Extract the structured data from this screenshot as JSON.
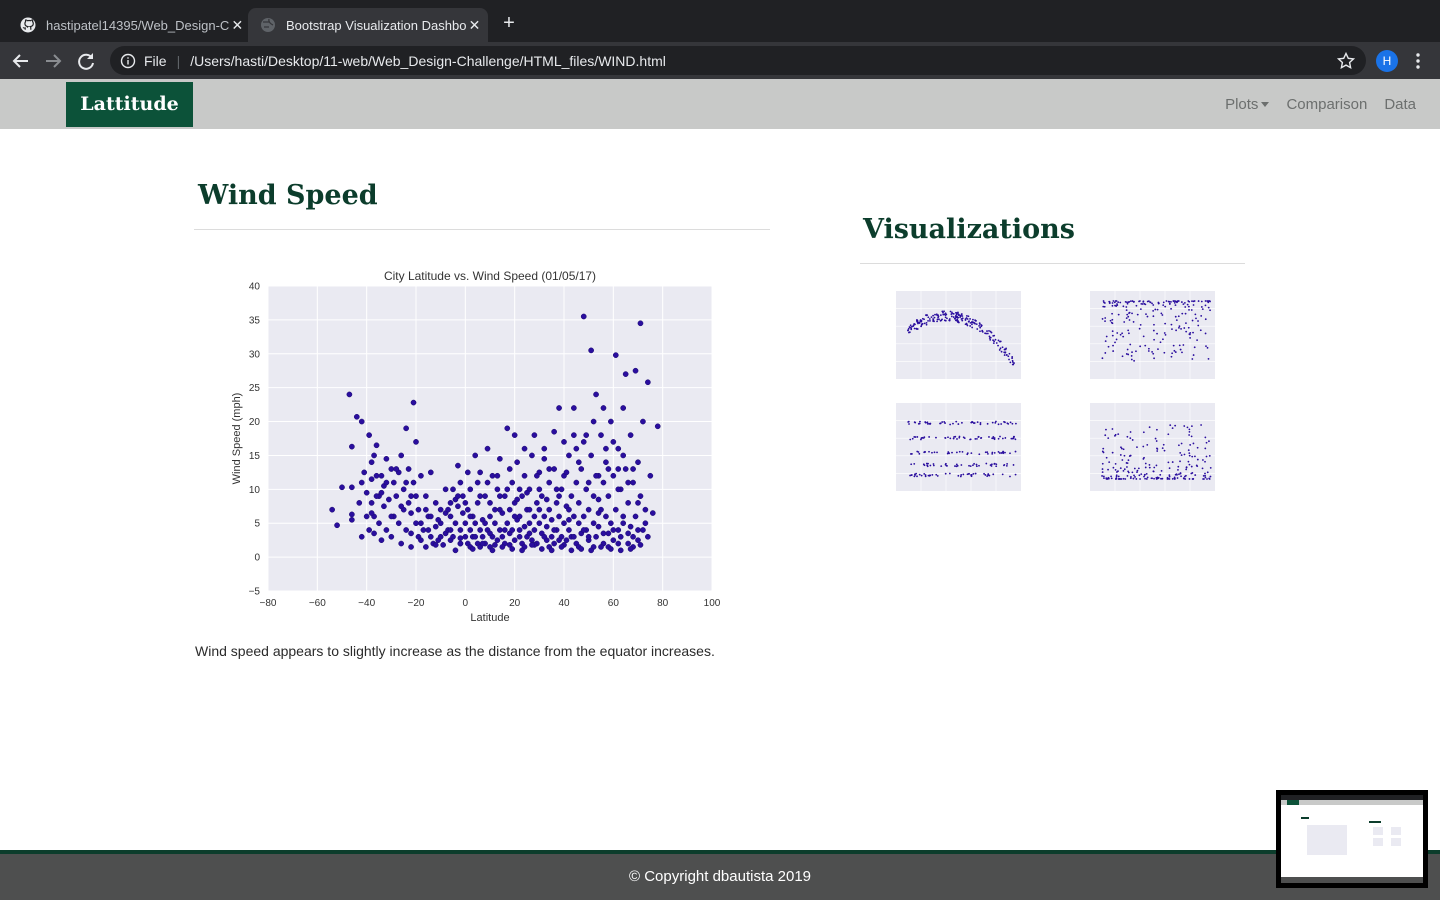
{
  "browser": {
    "tabs": [
      {
        "title": "hastipatel14395/Web_Design-C",
        "icon": "github-icon",
        "active": false
      },
      {
        "title": "Bootstrap Visualization Dashbo",
        "icon": "globe-icon",
        "active": true
      }
    ],
    "address": {
      "scheme": "File",
      "separator": "|",
      "url": "/Users/hasti/Desktop/11-web/Web_Design-Challenge/HTML_files/WIND.html"
    },
    "profile_initial": "H"
  },
  "navbar": {
    "brand": "Lattitude",
    "links": [
      {
        "label": "Plots",
        "dropdown": true
      },
      {
        "label": "Comparison"
      },
      {
        "label": "Data"
      }
    ]
  },
  "main": {
    "title": "Wind Speed",
    "description": "Wind speed appears to slightly increase as the distance from the equator increases."
  },
  "sidebar": {
    "title": "Visualizations",
    "thumbnails": [
      {
        "name": "max-temp",
        "shape": "dome"
      },
      {
        "name": "humidity",
        "shape": "high"
      },
      {
        "name": "cloudiness",
        "shape": "bands"
      },
      {
        "name": "wind",
        "shape": "low"
      }
    ]
  },
  "footer": {
    "text": "© Copyright dbautista 2019"
  },
  "colors": {
    "brand": "#0c5239",
    "heading": "#0c3d2c",
    "navbar": "#c8c9c8",
    "footer": "#4e4f4f",
    "point": "#2a0e9e",
    "plot_bg": "#eaeaf2"
  },
  "chart_data": {
    "type": "scatter",
    "title": "City Latitude vs. Wind Speed (01/05/17)",
    "xlabel": "Latitude",
    "ylabel": "Wind Speed (mph)",
    "xlim": [
      -80,
      100
    ],
    "ylim": [
      -5,
      40
    ],
    "xticks": [
      -80,
      -60,
      -40,
      -20,
      0,
      20,
      40,
      60,
      80,
      100
    ],
    "yticks": [
      -5,
      0,
      5,
      10,
      15,
      20,
      25,
      30,
      35,
      40
    ],
    "grid": true,
    "points": [
      [
        -54,
        7
      ],
      [
        -52,
        4.7
      ],
      [
        -50,
        10.3
      ],
      [
        -47,
        24
      ],
      [
        -46,
        16.3
      ],
      [
        -46,
        6.3
      ],
      [
        -46,
        10.3
      ],
      [
        -46,
        5.5
      ],
      [
        -44,
        20.7
      ],
      [
        -43,
        8
      ],
      [
        -42,
        20
      ],
      [
        -42,
        3
      ],
      [
        -41,
        12.5
      ],
      [
        -40,
        9.5
      ],
      [
        -39,
        18
      ],
      [
        -39,
        4
      ],
      [
        -38,
        14
      ],
      [
        -38,
        8
      ],
      [
        -38,
        11.5
      ],
      [
        -37,
        15
      ],
      [
        -37,
        6
      ],
      [
        -37,
        3.5
      ],
      [
        -36,
        16.5
      ],
      [
        -36,
        12
      ],
      [
        -35,
        5
      ],
      [
        -35,
        9
      ],
      [
        -34,
        12
      ],
      [
        -34,
        2.5
      ],
      [
        -33,
        7.5
      ],
      [
        -33,
        10.5
      ],
      [
        -32,
        14.5
      ],
      [
        -32,
        4
      ],
      [
        -31,
        8.5
      ],
      [
        -30,
        13
      ],
      [
        -30,
        3
      ],
      [
        -29,
        11
      ],
      [
        -29,
        6
      ],
      [
        -28,
        9
      ],
      [
        -27,
        5
      ],
      [
        -27,
        12.5
      ],
      [
        -26,
        2
      ],
      [
        -26,
        15
      ],
      [
        -25,
        7
      ],
      [
        -25,
        10
      ],
      [
        -24,
        19
      ],
      [
        -24,
        4
      ],
      [
        -23,
        8
      ],
      [
        -23,
        13
      ],
      [
        -22,
        1.5
      ],
      [
        -22,
        6.5
      ],
      [
        -22,
        9
      ],
      [
        -21,
        22.8
      ],
      [
        -21,
        11
      ],
      [
        -20,
        17
      ],
      [
        -20,
        5
      ],
      [
        -19,
        7
      ],
      [
        -19,
        3
      ],
      [
        -18,
        12
      ],
      [
        -18,
        2.5
      ],
      [
        -17,
        4
      ],
      [
        -16,
        9
      ],
      [
        -16,
        1.5
      ],
      [
        -15,
        6
      ],
      [
        -14,
        3
      ],
      [
        -14,
        12.5
      ],
      [
        -13,
        2
      ],
      [
        -12,
        4.5
      ],
      [
        -12,
        8
      ],
      [
        -11,
        2.5
      ],
      [
        -10,
        7
      ],
      [
        -10,
        5
      ],
      [
        -9,
        1.8
      ],
      [
        -8,
        3.5
      ],
      [
        -8,
        10
      ],
      [
        -7,
        4
      ],
      [
        -6,
        2.5
      ],
      [
        -6,
        6
      ],
      [
        -5,
        10
      ],
      [
        -5,
        3
      ],
      [
        -4,
        1
      ],
      [
        -4,
        5
      ],
      [
        -3,
        7.5
      ],
      [
        -3,
        13.5
      ],
      [
        -2,
        4
      ],
      [
        -2,
        2
      ],
      [
        -1,
        6.5
      ],
      [
        -1,
        9
      ],
      [
        0,
        3
      ],
      [
        0,
        5
      ],
      [
        1,
        2
      ],
      [
        1,
        7
      ],
      [
        2,
        4
      ],
      [
        2,
        10
      ],
      [
        3,
        3
      ],
      [
        3,
        6
      ],
      [
        4,
        5
      ],
      [
        4,
        15
      ],
      [
        5,
        2
      ],
      [
        5,
        8
      ],
      [
        6,
        4
      ],
      [
        6,
        12.5
      ],
      [
        7,
        3
      ],
      [
        7,
        5.5
      ],
      [
        8,
        9
      ],
      [
        8,
        2
      ],
      [
        9,
        4
      ],
      [
        9,
        16
      ],
      [
        10,
        6
      ],
      [
        10,
        1.5
      ],
      [
        11,
        3
      ],
      [
        11,
        12
      ],
      [
        12,
        5
      ],
      [
        12,
        7
      ],
      [
        13,
        2.5
      ],
      [
        13,
        10
      ],
      [
        14,
        4
      ],
      [
        14,
        14.5
      ],
      [
        15,
        6.5
      ],
      [
        15,
        3
      ],
      [
        16,
        9
      ],
      [
        16,
        2
      ],
      [
        17,
        5
      ],
      [
        17,
        19
      ],
      [
        18,
        7
      ],
      [
        18,
        3.5
      ],
      [
        19,
        11
      ],
      [
        19,
        4
      ],
      [
        20,
        8
      ],
      [
        20,
        2.5
      ],
      [
        21,
        5.5
      ],
      [
        21,
        14
      ],
      [
        22,
        3
      ],
      [
        22,
        6
      ],
      [
        23,
        9
      ],
      [
        23,
        2
      ],
      [
        24,
        4.5
      ],
      [
        24,
        12
      ],
      [
        25,
        7
      ],
      [
        25,
        3
      ],
      [
        26,
        10
      ],
      [
        26,
        5
      ],
      [
        27,
        2.5
      ],
      [
        27,
        15
      ],
      [
        28,
        6
      ],
      [
        28,
        4
      ],
      [
        29,
        8
      ],
      [
        29,
        2
      ],
      [
        30,
        12.5
      ],
      [
        30,
        5
      ],
      [
        31,
        3.5
      ],
      [
        31,
        9
      ],
      [
        32,
        6
      ],
      [
        32,
        16
      ],
      [
        33,
        2.5
      ],
      [
        33,
        4.5
      ],
      [
        34,
        11
      ],
      [
        34,
        7
      ],
      [
        35,
        3
      ],
      [
        35,
        5.5
      ],
      [
        36,
        13
      ],
      [
        36,
        2
      ],
      [
        37,
        8
      ],
      [
        37,
        4
      ],
      [
        38,
        22
      ],
      [
        38,
        6
      ],
      [
        39,
        3
      ],
      [
        39,
        10
      ],
      [
        40,
        5
      ],
      [
        40,
        12
      ],
      [
        41,
        2.5
      ],
      [
        41,
        7.5
      ],
      [
        42,
        4
      ],
      [
        42,
        15
      ],
      [
        43,
        9
      ],
      [
        43,
        3
      ],
      [
        44,
        6
      ],
      [
        44,
        22
      ],
      [
        45,
        2
      ],
      [
        45,
        11
      ],
      [
        46,
        5
      ],
      [
        46,
        8
      ],
      [
        47,
        3.5
      ],
      [
        47,
        13
      ],
      [
        48,
        35.5
      ],
      [
        48,
        6
      ],
      [
        49,
        4
      ],
      [
        49,
        10
      ],
      [
        50,
        7
      ],
      [
        50,
        2.5
      ],
      [
        51,
        30.5
      ],
      [
        51,
        15
      ],
      [
        52,
        5
      ],
      [
        52,
        9
      ],
      [
        53,
        3
      ],
      [
        53,
        24
      ],
      [
        54,
        12
      ],
      [
        54,
        4.5
      ],
      [
        55,
        7
      ],
      [
        55,
        18
      ],
      [
        56,
        2
      ],
      [
        56,
        11
      ],
      [
        57,
        6
      ],
      [
        57,
        14
      ],
      [
        58,
        3.5
      ],
      [
        58,
        9
      ],
      [
        59,
        20
      ],
      [
        59,
        5
      ],
      [
        60,
        12
      ],
      [
        60,
        2.5
      ],
      [
        61,
        29.8
      ],
      [
        61,
        7
      ],
      [
        62,
        4
      ],
      [
        62,
        16
      ],
      [
        63,
        10
      ],
      [
        63,
        3
      ],
      [
        64,
        6
      ],
      [
        64,
        22
      ],
      [
        65,
        27
      ],
      [
        65,
        13
      ],
      [
        66,
        2
      ],
      [
        66,
        8
      ],
      [
        67,
        4.5
      ],
      [
        67,
        18
      ],
      [
        68,
        11
      ],
      [
        68,
        3
      ],
      [
        69,
        6
      ],
      [
        69,
        27.5
      ],
      [
        70,
        14
      ],
      [
        70,
        2.5
      ],
      [
        71,
        34.5
      ],
      [
        71,
        9
      ],
      [
        72,
        4
      ],
      [
        72,
        20
      ],
      [
        73,
        7
      ],
      [
        74,
        25.8
      ],
      [
        74,
        3
      ],
      [
        76,
        6.5
      ],
      [
        78,
        19.3
      ],
      [
        -15,
        4
      ],
      [
        -12,
        1.8
      ],
      [
        -8,
        6.5
      ],
      [
        -6,
        4
      ],
      [
        -4,
        8.5
      ],
      [
        -2,
        2.8
      ],
      [
        0,
        8
      ],
      [
        2,
        1.5
      ],
      [
        4,
        3
      ],
      [
        6,
        1.5
      ],
      [
        8,
        5
      ],
      [
        10,
        3.5
      ],
      [
        12,
        1.8
      ],
      [
        14,
        7
      ],
      [
        16,
        4
      ],
      [
        18,
        1.8
      ],
      [
        20,
        6
      ],
      [
        22,
        4
      ],
      [
        24,
        1.5
      ],
      [
        26,
        3.5
      ],
      [
        28,
        1.8
      ],
      [
        30,
        7
      ],
      [
        32,
        3
      ],
      [
        34,
        1.5
      ],
      [
        36,
        4
      ],
      [
        38,
        2.5
      ],
      [
        40,
        1.8
      ],
      [
        42,
        5.5
      ],
      [
        44,
        3
      ],
      [
        46,
        1.5
      ],
      [
        48,
        4
      ],
      [
        50,
        3
      ],
      [
        52,
        1.5
      ],
      [
        54,
        6.5
      ],
      [
        56,
        3.5
      ],
      [
        58,
        1.5
      ],
      [
        60,
        4
      ],
      [
        62,
        2
      ],
      [
        64,
        5
      ],
      [
        66,
        3.5
      ],
      [
        68,
        1.5
      ],
      [
        70,
        4
      ],
      [
        62,
        10
      ],
      [
        58,
        13
      ],
      [
        54,
        8.5
      ],
      [
        50,
        11
      ],
      [
        46,
        14
      ],
      [
        42,
        7
      ],
      [
        38,
        9
      ],
      [
        34,
        13
      ],
      [
        30,
        10
      ],
      [
        26,
        7
      ],
      [
        22,
        10
      ],
      [
        18,
        13
      ],
      [
        14,
        9
      ],
      [
        10,
        8
      ],
      [
        6,
        9
      ],
      [
        2,
        6
      ],
      [
        -2,
        11
      ],
      [
        -6,
        8
      ],
      [
        -10,
        3
      ],
      [
        -14,
        6
      ],
      [
        -18,
        5
      ],
      [
        -22,
        3.5
      ],
      [
        -26,
        7.5
      ],
      [
        -30,
        6
      ],
      [
        -34,
        9.5
      ],
      [
        -38,
        6.5
      ],
      [
        -42,
        11
      ],
      [
        44,
        18
      ],
      [
        40,
        17
      ],
      [
        36,
        18.5
      ],
      [
        48,
        17
      ],
      [
        52,
        20
      ],
      [
        56,
        22
      ],
      [
        60,
        17
      ],
      [
        64,
        15
      ],
      [
        68,
        13
      ],
      [
        24,
        16
      ],
      [
        20,
        18
      ],
      [
        28,
        18
      ],
      [
        32,
        14.5
      ],
      [
        -2,
        2
      ],
      [
        3,
        1.2
      ],
      [
        7,
        2
      ],
      [
        11,
        1
      ],
      [
        15,
        1.5
      ],
      [
        19,
        1.2
      ],
      [
        23,
        1
      ],
      [
        27,
        1.8
      ],
      [
        31,
        1.2
      ],
      [
        35,
        1
      ],
      [
        39,
        1.5
      ],
      [
        43,
        1
      ],
      [
        47,
        1.2
      ],
      [
        51,
        1
      ],
      [
        55,
        1.5
      ],
      [
        59,
        1.2
      ],
      [
        63,
        1
      ],
      [
        67,
        1.2
      ],
      [
        71,
        1.8
      ],
      [
        73,
        5
      ],
      [
        75,
        12
      ],
      [
        70,
        8
      ],
      [
        66,
        11
      ],
      [
        62,
        13
      ],
      [
        57,
        16
      ],
      [
        53,
        12
      ],
      [
        49,
        18
      ],
      [
        45,
        16
      ],
      [
        41,
        12.5
      ],
      [
        37,
        10
      ],
      [
        33,
        8.5
      ],
      [
        29,
        12
      ],
      [
        25,
        9.5
      ],
      [
        21,
        8.5
      ],
      [
        17,
        10
      ],
      [
        13,
        12
      ],
      [
        9,
        11
      ],
      [
        5,
        11
      ],
      [
        1,
        12.5
      ],
      [
        -3,
        9
      ],
      [
        -7,
        7
      ],
      [
        -11,
        5.5
      ],
      [
        -16,
        7
      ],
      [
        -20,
        9
      ],
      [
        -24,
        11
      ],
      [
        -28,
        13
      ],
      [
        -32,
        11
      ],
      [
        -36,
        9
      ],
      [
        -40,
        6
      ]
    ]
  }
}
